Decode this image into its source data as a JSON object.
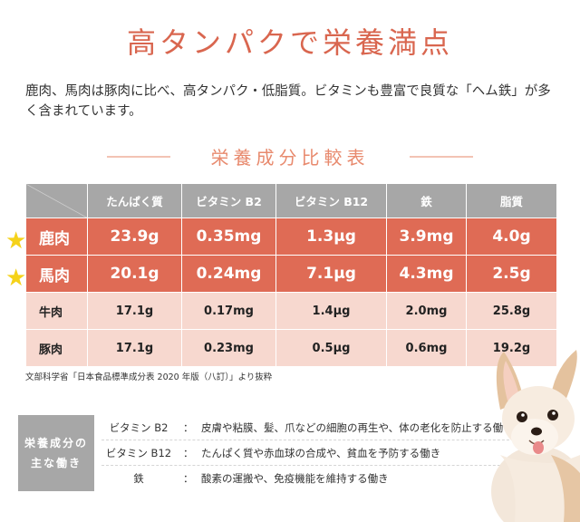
{
  "title": "高タンパクで栄養満点",
  "intro": "鹿肉、馬肉は豚肉に比べ、高タンパク・低脂質。ビタミンも豊富で良質な「ヘム鉄」が多く含まれています。",
  "section_title": "栄養成分比較表",
  "table": {
    "headers": [
      "たんぱく質",
      "ビタミン B2",
      "ビタミン B12",
      "鉄",
      "脂質"
    ],
    "rows": [
      {
        "name": "鹿肉",
        "values": [
          "23.9g",
          "0.35mg",
          "1.3μg",
          "3.9mg",
          "4.0g"
        ],
        "highlight": true
      },
      {
        "name": "馬肉",
        "values": [
          "20.1g",
          "0.24mg",
          "7.1μg",
          "4.3mg",
          "2.5g"
        ],
        "highlight": true
      },
      {
        "name": "牛肉",
        "values": [
          "17.1g",
          "0.17mg",
          "1.4μg",
          "2.0mg",
          "25.8g"
        ],
        "highlight": false
      },
      {
        "name": "豚肉",
        "values": [
          "17.1g",
          "0.23mg",
          "0.5μg",
          "0.6mg",
          "19.2g"
        ],
        "highlight": false
      }
    ]
  },
  "source": "文部科学省「日本食品標準成分表 2020 年版（八訂）」より抜粋",
  "nutrients": {
    "badge_line1": "栄養成分の",
    "badge_line2": "主な働き",
    "items": [
      {
        "name": "ビタミン B2",
        "colon": "：",
        "desc": "皮膚や粘膜、髪、爪などの細胞の再生や、体の老化を防止する働き"
      },
      {
        "name": "ビタミン B12",
        "colon": "：",
        "desc": "たんぱく質や赤血球の合成や、貧血を予防する働き"
      },
      {
        "name": "鉄",
        "colon": "：",
        "desc": "酸素の運搬や、免疫機能を維持する働き"
      }
    ]
  },
  "colors": {
    "accent": "#d9664f",
    "highlight_row": "#df6b55",
    "normal_row": "#f7d8cf",
    "header": "#a7a7a7",
    "star": "#f5d21a"
  }
}
